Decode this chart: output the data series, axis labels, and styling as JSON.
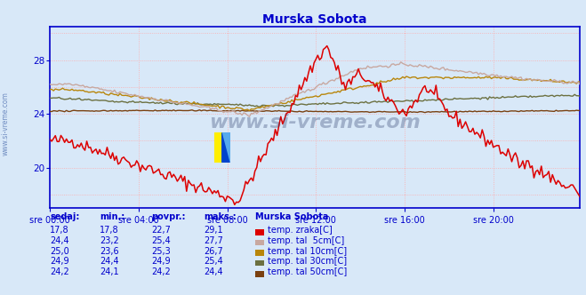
{
  "title": "Murska Sobota",
  "title_color": "#0000cc",
  "bg_color": "#d8e8f8",
  "plot_bg_color": "#d8e8f8",
  "grid_color": "#ffaaaa",
  "xlim": [
    0,
    287
  ],
  "ylim": [
    17.0,
    30.5
  ],
  "yticks": [
    20,
    24,
    28
  ],
  "xtick_labels": [
    "sre 00:00",
    "sre 04:00",
    "sre 08:00",
    "sre 12:00",
    "sre 16:00",
    "sre 20:00"
  ],
  "xtick_pos": [
    0,
    48,
    96,
    144,
    192,
    240
  ],
  "watermark": "www.si-vreme.com",
  "watermark_color": "#203060",
  "series_colors": [
    "#dd0000",
    "#c8a8a0",
    "#b8860b",
    "#6b7040",
    "#7a4010"
  ],
  "series_labels": [
    "temp. zraka[C]",
    "temp. tal  5cm[C]",
    "temp. tal 10cm[C]",
    "temp. tal 30cm[C]",
    "temp. tal 50cm[C]"
  ],
  "legend_colors": [
    "#dd0000",
    "#c8a8a0",
    "#b8860b",
    "#6b7040",
    "#7a4010"
  ],
  "sedaj": [
    17.8,
    24.4,
    25.0,
    24.9,
    24.2
  ],
  "min_vals": [
    17.8,
    23.2,
    23.6,
    24.4,
    24.1
  ],
  "povpr_vals": [
    22.7,
    25.4,
    25.3,
    24.9,
    24.2
  ],
  "maks_vals": [
    29.1,
    27.7,
    26.7,
    25.4,
    24.4
  ],
  "table_headers": [
    "sedaj:",
    "min.:",
    "povpr.:",
    "maks.:",
    "Murska Sobota"
  ],
  "table_color": "#0000cc",
  "axis_color": "#0000cc",
  "logo_yellow": "#ffee00",
  "logo_blue_dark": "#0044cc",
  "logo_blue_light": "#55aaee"
}
